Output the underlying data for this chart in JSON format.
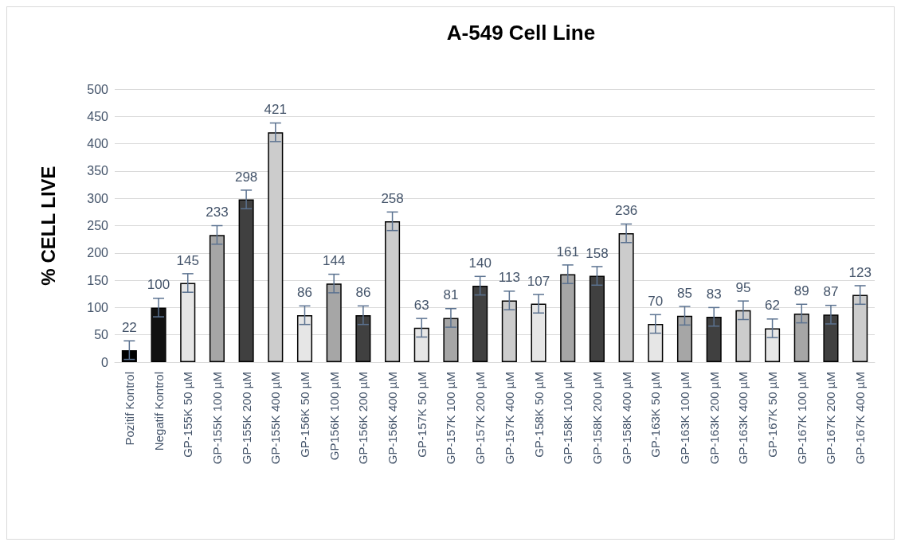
{
  "chart_data": {
    "type": "bar",
    "title": "A-549 Cell Line",
    "ylabel": "% CELL LIVE",
    "categories": [
      "Pozitif Kontrol",
      "Negatif Kontrol",
      "GP-155K 50 µM",
      "GP-155K 100 µM",
      "GP-155K 200 µM",
      "GP-155K 400 µM",
      "GP-156K 50 µM",
      "GP156K 100 µM",
      "GP-156K 200 µM",
      "GP-156K 400 µM",
      "GP-157K 50 µM",
      "GP-157K 100 µM",
      "GP-157K 200 µM",
      "GP-157K 400 µM",
      "GP-158K 50 µM",
      "GP-158K 100 µM",
      "GP-158K 200 µM",
      "GP-158K 400 µM",
      "GP-163K 50 µM",
      "GP-163K 100 µM",
      "GP-163K 200 µM",
      "GP-163K 400 µM",
      "GP-167K 50 µM",
      "GP-167K 100 µM",
      "GP-167K 200 µM",
      "GP-167K 400 µM"
    ],
    "values": [
      22,
      100,
      145,
      233,
      298,
      421,
      86,
      144,
      86,
      258,
      63,
      81,
      140,
      113,
      107,
      161,
      158,
      236,
      70,
      85,
      83,
      95,
      62,
      89,
      87,
      123
    ],
    "errors": [
      17,
      17,
      17,
      17,
      17,
      17,
      17,
      17,
      17,
      17,
      17,
      17,
      17,
      17,
      17,
      17,
      17,
      17,
      17,
      17,
      17,
      17,
      17,
      17,
      17,
      17
    ],
    "colors": [
      "#000000",
      "#111111",
      "#e6e6e6",
      "#a6a6a6",
      "#404040",
      "#cccccc",
      "#e6e6e6",
      "#a6a6a6",
      "#404040",
      "#cccccc",
      "#e6e6e6",
      "#a6a6a6",
      "#404040",
      "#cccccc",
      "#e6e6e6",
      "#a6a6a6",
      "#404040",
      "#cccccc",
      "#e6e6e6",
      "#a6a6a6",
      "#404040",
      "#cccccc",
      "#e6e6e6",
      "#a6a6a6",
      "#404040",
      "#cccccc"
    ],
    "ylim": [
      0,
      500
    ],
    "yticks": [
      0,
      50,
      100,
      150,
      200,
      250,
      300,
      350,
      400,
      450,
      500
    ],
    "grid": "y",
    "data_labels": true
  }
}
